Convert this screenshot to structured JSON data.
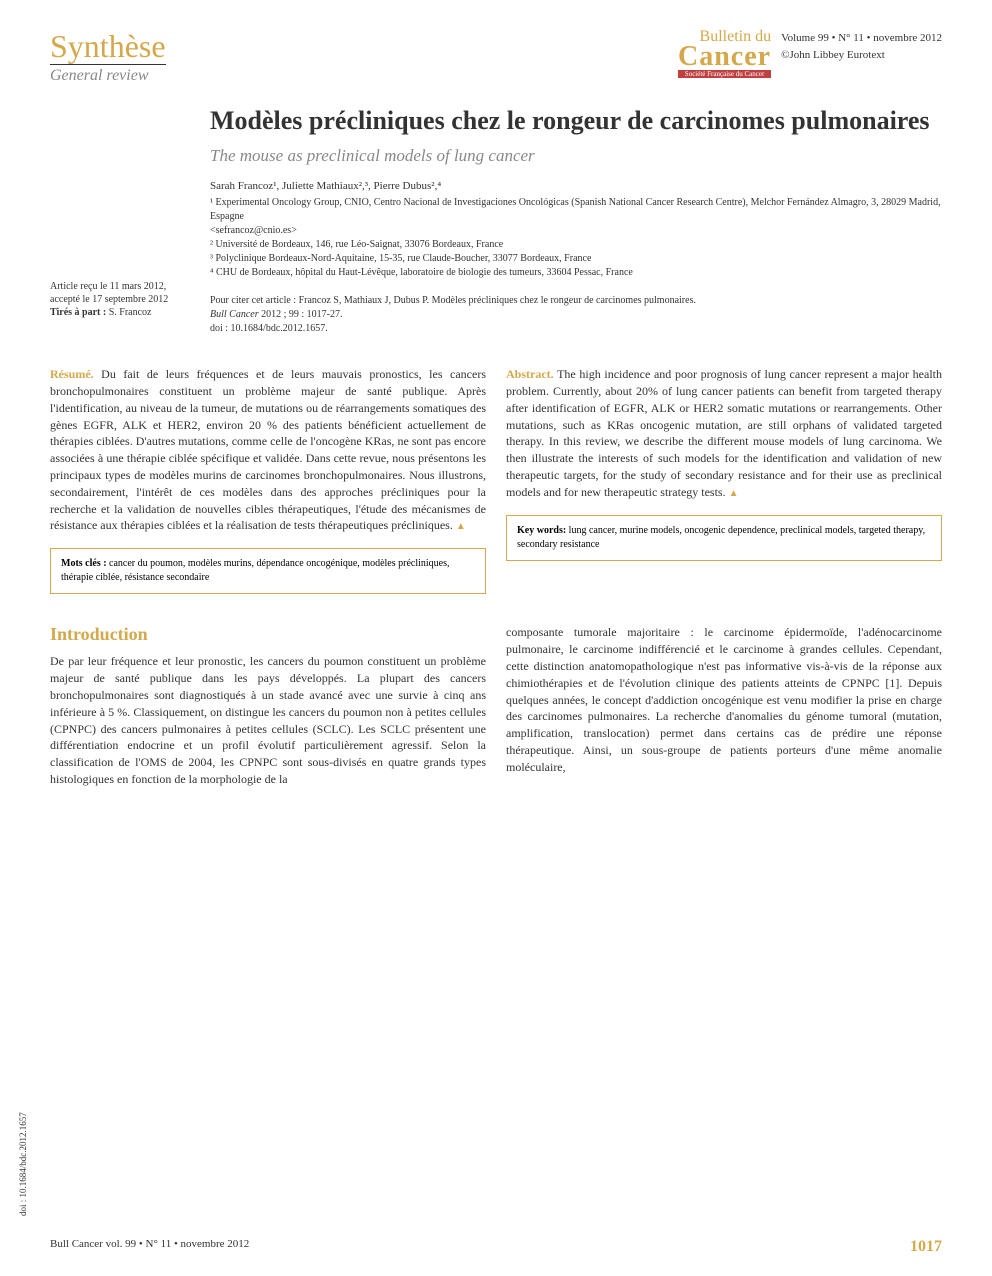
{
  "header": {
    "section_title": "Synthèse",
    "section_subtitle": "General review",
    "journal_top": "Bulletin du",
    "journal_main": "Cancer",
    "journal_sub": "Société Française du Cancer",
    "volume": "Volume 99 • N° 11 • novembre 2012",
    "publisher": "©John Libbey Eurotext"
  },
  "article": {
    "title": "Modèles précliniques chez le rongeur de carcinomes pulmonaires",
    "subtitle": "The mouse as preclinical models of lung cancer",
    "authors": "Sarah Francoz¹, Juliette Mathiaux²,³, Pierre Dubus²,⁴",
    "affiliations": [
      "¹ Experimental Oncology Group, CNIO, Centro Nacional de Investigaciones Oncológicas (Spanish National Cancer Research Centre), Melchor Fernández Almagro, 3, 28029 Madrid, Espagne",
      "<sefrancoz@cnio.es>",
      "² Université de Bordeaux, 146, rue Léo-Saignat, 33076 Bordeaux, France",
      "³ Polyclinique Bordeaux-Nord-Aquitaine, 15-35, rue Claude-Boucher, 33077 Bordeaux, France",
      "⁴ CHU de Bordeaux, hôpital du Haut-Lévêque, laboratoire de biologie des tumeurs, 33604 Pessac, France"
    ]
  },
  "side_meta": {
    "received": "Article reçu le 11 mars 2012,",
    "accepted": "accepté le 17 septembre 2012",
    "reprints_label": "Tirés à part :",
    "reprints_value": " S. Francoz"
  },
  "citation": {
    "intro": "Pour citer cet article : Francoz S, Mathiaux J, Dubus P. Modèles précliniques chez le rongeur de carcinomes pulmonaires.",
    "journal": "Bull Cancer",
    "details": " 2012 ; 99 : 1017-27.",
    "doi": "doi : 10.1684/bdc.2012.1657."
  },
  "abstract_fr": {
    "label": "Résumé.",
    "text": " Du fait de leurs fréquences et de leurs mauvais pronostics, les cancers bronchopulmonaires constituent un problème majeur de santé publique. Après l'identification, au niveau de la tumeur, de mutations ou de réarrangements somatiques des gènes EGFR, ALK et HER2, environ 20 % des patients bénéficient actuellement de thérapies ciblées. D'autres mutations, comme celle de l'oncogène KRas, ne sont pas encore associées à une thérapie ciblée spécifique et validée. Dans cette revue, nous présentons les principaux types de modèles murins de carcinomes bronchopulmonaires. Nous illustrons, secondairement, l'intérêt de ces modèles dans des approches précliniques pour la recherche et la validation de nouvelles cibles thérapeutiques, l'étude des mécanismes de résistance aux thérapies ciblées et la réalisation de tests thérapeutiques précliniques. "
  },
  "abstract_en": {
    "label": "Abstract.",
    "text": " The high incidence and poor prognosis of lung cancer represent a major health problem. Currently, about 20% of lung cancer patients can benefit from targeted therapy after identification of EGFR, ALK or HER2 somatic mutations or rearrangements. Other mutations, such as KRas oncogenic mutation, are still orphans of validated targeted therapy. In this review, we describe the different mouse models of lung carcinoma. We then illustrate the interests of such models for the identification and validation of new therapeutic targets, for the study of secondary resistance and for their use as preclinical models and for new therapeutic strategy tests. "
  },
  "keywords_fr": {
    "label": "Mots clés :",
    "text": " cancer du poumon, modèles murins, dépendance oncogénique, modèles précliniques, thérapie ciblée, résistance secondaire"
  },
  "keywords_en": {
    "label": "Key words:",
    "text": " lung cancer, murine models, oncogenic dependence, preclinical models, targeted therapy, secondary resistance"
  },
  "introduction": {
    "heading": "Introduction",
    "col1": "De par leur fréquence et leur pronostic, les cancers du poumon constituent un problème majeur de santé publique dans les pays développés. La plupart des cancers bronchopulmonaires sont diagnostiqués à un stade avancé avec une survie à cinq ans inférieure à 5 %. Classiquement, on distingue les cancers du poumon non à petites cellules (CPNPC) des cancers pulmonaires à petites cellules (SCLC). Les SCLC présentent une différentiation endocrine et un profil évolutif particulièrement agressif. Selon la classification de l'OMS de 2004, les CPNPC sont sous-divisés en quatre grands types histologiques en fonction de la morphologie de la",
    "col2": "composante tumorale majoritaire : le carcinome épidermoïde, l'adénocarcinome pulmonaire, le carcinome indifférencié et le carcinome à grandes cellules. Cependant, cette distinction anatomopathologique n'est pas informative vis-à-vis de la réponse aux chimiothérapies et de l'évolution clinique des patients atteints de CPNPC [1]. Depuis quelques années, le concept d'addiction oncogénique est venu modifier la prise en charge des carcinomes pulmonaires. La recherche d'anomalies du génome tumoral (mutation, amplification, translocation) permet dans certains cas de prédire une réponse thérapeutique. Ainsi, un sous-groupe de patients porteurs d'une même anomalie moléculaire,"
  },
  "doi_side": "doi : 10.1684/bdc.2012.1657",
  "footer": {
    "left": "Bull Cancer vol. 99 • N° 11 • novembre 2012",
    "page": "1017"
  },
  "colors": {
    "accent": "#d4a84b",
    "text": "#333333",
    "gray": "#888888",
    "red_banner": "#c04040"
  }
}
